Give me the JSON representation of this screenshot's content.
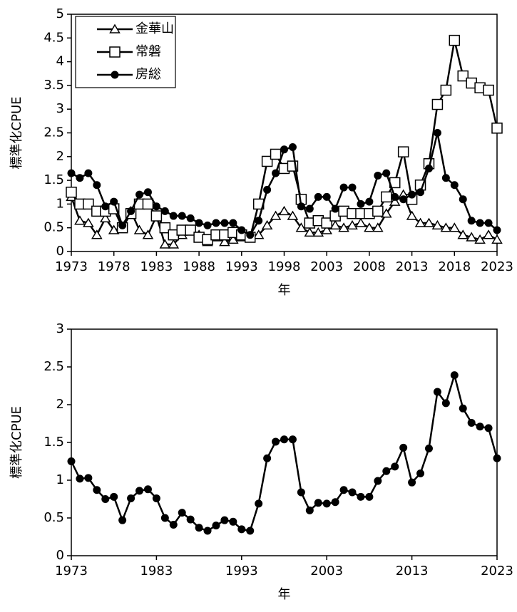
{
  "chart_data": [
    {
      "type": "line",
      "xlabel": "年",
      "ylabel": "標準化CPUE",
      "x": [
        1973,
        1974,
        1975,
        1976,
        1977,
        1978,
        1979,
        1980,
        1981,
        1982,
        1983,
        1984,
        1985,
        1986,
        1987,
        1988,
        1989,
        1990,
        1991,
        1992,
        1993,
        1994,
        1995,
        1996,
        1997,
        1998,
        1999,
        2000,
        2001,
        2002,
        2003,
        2004,
        2005,
        2006,
        2007,
        2008,
        2009,
        2010,
        2011,
        2012,
        2013,
        2014,
        2015,
        2016,
        2017,
        2018,
        2019,
        2020,
        2021,
        2022,
        2023
      ],
      "series": [
        {
          "name": "金華山",
          "color": "#000000",
          "marker": "triangle",
          "values": [
            1.15,
            0.65,
            0.6,
            0.35,
            0.7,
            0.45,
            0.5,
            0.85,
            0.45,
            0.35,
            0.75,
            0.15,
            0.15,
            0.35,
            0.45,
            0.35,
            0.2,
            0.3,
            0.2,
            0.25,
            0.3,
            0.3,
            0.35,
            0.55,
            0.75,
            0.85,
            0.75,
            0.5,
            0.4,
            0.4,
            0.45,
            0.55,
            0.5,
            0.55,
            0.6,
            0.5,
            0.5,
            0.8,
            1.05,
            1.2,
            0.75,
            0.6,
            0.6,
            0.55,
            0.5,
            0.5,
            0.35,
            0.3,
            0.25,
            0.35,
            0.25
          ]
        },
        {
          "name": "常磐",
          "color": "#000000",
          "marker": "square",
          "values": [
            1.25,
            1.0,
            1.0,
            0.85,
            0.85,
            0.9,
            0.5,
            0.8,
            1.0,
            1.0,
            0.75,
            0.5,
            0.35,
            0.45,
            0.45,
            0.3,
            0.25,
            0.35,
            0.35,
            0.4,
            0.35,
            0.3,
            1.0,
            1.9,
            2.05,
            1.75,
            1.8,
            1.1,
            0.6,
            0.65,
            0.6,
            0.75,
            0.85,
            0.8,
            0.8,
            0.8,
            0.85,
            1.15,
            1.45,
            2.1,
            1.1,
            1.4,
            1.85,
            3.1,
            3.4,
            4.45,
            3.7,
            3.55,
            3.45,
            3.4,
            2.6
          ]
        },
        {
          "name": "房総",
          "color": "#000000",
          "marker": "circle",
          "values": [
            1.65,
            1.55,
            1.65,
            1.4,
            0.95,
            1.05,
            0.55,
            0.85,
            1.2,
            1.25,
            0.95,
            0.85,
            0.75,
            0.75,
            0.7,
            0.6,
            0.55,
            0.6,
            0.6,
            0.6,
            0.45,
            0.35,
            0.65,
            1.3,
            1.65,
            2.15,
            2.2,
            0.95,
            0.9,
            1.15,
            1.15,
            0.9,
            1.35,
            1.35,
            1.0,
            1.05,
            1.6,
            1.65,
            1.15,
            1.1,
            1.2,
            1.25,
            1.75,
            2.5,
            1.55,
            1.4,
            1.1,
            0.65,
            0.6,
            0.6,
            0.45
          ]
        }
      ],
      "xlim": [
        1973,
        2023
      ],
      "xticks": [
        1973,
        1978,
        1983,
        1988,
        1993,
        1998,
        2003,
        2008,
        2013,
        2018,
        2023
      ],
      "ylim": [
        0,
        5
      ],
      "yticks": [
        0,
        0.5,
        1,
        1.5,
        2,
        2.5,
        3,
        3.5,
        4,
        4.5,
        5
      ],
      "legend": "upper left"
    },
    {
      "type": "line",
      "xlabel": "年",
      "ylabel": "標準化CPUE",
      "color": "#000000",
      "marker": "circle",
      "x": [
        1973,
        1974,
        1975,
        1976,
        1977,
        1978,
        1979,
        1980,
        1981,
        1982,
        1983,
        1984,
        1985,
        1986,
        1987,
        1988,
        1989,
        1990,
        1991,
        1992,
        1993,
        1994,
        1995,
        1996,
        1997,
        1998,
        1999,
        2000,
        2001,
        2002,
        2003,
        2004,
        2005,
        2006,
        2007,
        2008,
        2009,
        2010,
        2011,
        2012,
        2013,
        2014,
        2015,
        2016,
        2017,
        2018,
        2019,
        2020,
        2021,
        2022,
        2023
      ],
      "values": [
        1.25,
        1.02,
        1.03,
        0.87,
        0.75,
        0.78,
        0.47,
        0.76,
        0.86,
        0.88,
        0.76,
        0.5,
        0.41,
        0.57,
        0.48,
        0.37,
        0.33,
        0.4,
        0.47,
        0.45,
        0.35,
        0.33,
        0.69,
        1.29,
        1.51,
        1.54,
        1.54,
        0.84,
        0.6,
        0.7,
        0.69,
        0.71,
        0.87,
        0.84,
        0.78,
        0.78,
        0.99,
        1.12,
        1.18,
        1.43,
        0.97,
        1.09,
        1.42,
        2.17,
        2.02,
        2.39,
        1.95,
        1.76,
        1.71,
        1.69,
        1.29
      ],
      "xlim": [
        1973,
        2023
      ],
      "xticks": [
        1973,
        1983,
        1993,
        2003,
        2013,
        2023
      ],
      "ylim": [
        0,
        3
      ],
      "yticks": [
        0,
        0.5,
        1,
        1.5,
        2,
        2.5,
        3
      ]
    }
  ]
}
